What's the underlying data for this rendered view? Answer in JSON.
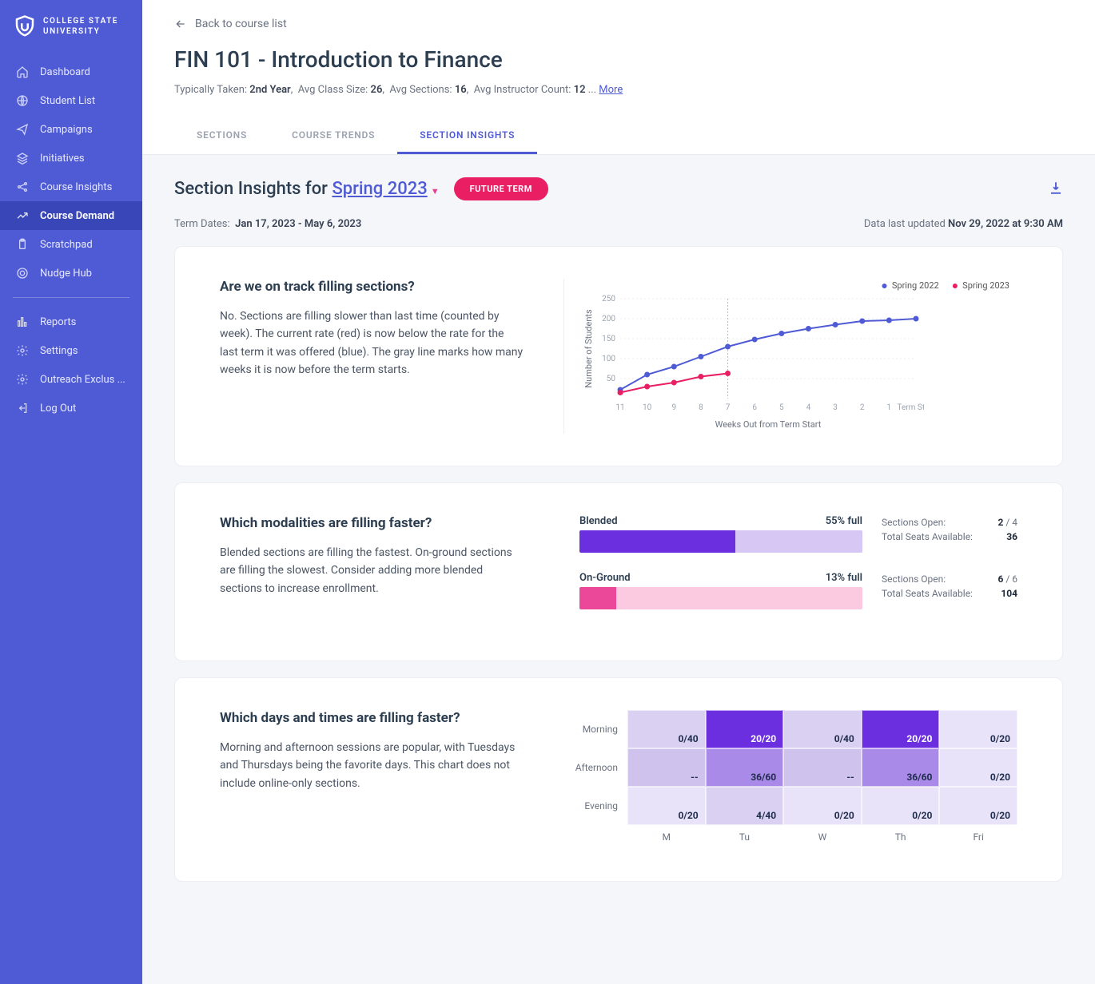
{
  "brand": {
    "line1": "COLLEGE STATE",
    "line2": "UNIVERSITY"
  },
  "sidebar": {
    "items": [
      {
        "label": "Dashboard",
        "icon": "home"
      },
      {
        "label": "Student List",
        "icon": "globe"
      },
      {
        "label": "Campaigns",
        "icon": "send"
      },
      {
        "label": "Initiatives",
        "icon": "layers"
      },
      {
        "label": "Course Insights",
        "icon": "share"
      },
      {
        "label": "Course Demand",
        "icon": "trend"
      },
      {
        "label": "Scratchpad",
        "icon": "clipboard"
      },
      {
        "label": "Nudge Hub",
        "icon": "target"
      }
    ],
    "secondary": [
      {
        "label": "Reports",
        "icon": "bar"
      },
      {
        "label": "Settings",
        "icon": "gear"
      },
      {
        "label": "Outreach Exclus ...",
        "icon": "gear"
      },
      {
        "label": "Log Out",
        "icon": "logout"
      }
    ],
    "active_index": 5
  },
  "header": {
    "back": "Back to course list",
    "title": "FIN 101 - Introduction to Finance",
    "meta": {
      "typically_taken_label": "Typically Taken:",
      "typically_taken": "2nd Year",
      "class_size_label": "Avg Class Size:",
      "class_size": "26",
      "sections_label": "Avg Sections:",
      "sections": "16",
      "instructors_label": "Avg Instructor Count:",
      "instructors": "12",
      "ellipsis": "...",
      "more": "More"
    },
    "tabs": [
      "SECTIONS",
      "COURSE TRENDS",
      "SECTION INSIGHTS"
    ],
    "active_tab": 2
  },
  "insights": {
    "title_prefix": "Section Insights for ",
    "term": "Spring 2023",
    "badge": "FUTURE TERM",
    "term_dates_label": "Term Dates:",
    "term_dates": "Jan 17, 2023 -  May 6, 2023",
    "updated_label": "Data last updated",
    "updated": "Nov 29, 2022 at 9:30 AM"
  },
  "card1": {
    "title": "Are we on track filling sections?",
    "body": "No. Sections are filling slower than last time (counted by week). The current rate (red) is now below the rate for the last term it was offered (blue). The gray line marks how many weeks it is now before the term starts.",
    "chart": {
      "type": "line",
      "xlabel": "Weeks Out from Term Start",
      "ylabel": "Number of Students",
      "x_ticks": [
        "11",
        "10",
        "9",
        "8",
        "7",
        "6",
        "5",
        "4",
        "3",
        "2",
        "1",
        "Term Start"
      ],
      "y_ticks": [
        50,
        100,
        150,
        200,
        250
      ],
      "ylim": [
        0,
        250
      ],
      "series": [
        {
          "name": "Spring 2022",
          "color": "#4f5bd5",
          "values": [
            22,
            60,
            80,
            105,
            130,
            148,
            163,
            175,
            185,
            194,
            196,
            200
          ]
        },
        {
          "name": "Spring 2023",
          "color": "#e91e63",
          "values": [
            15,
            30,
            40,
            55,
            63
          ]
        }
      ],
      "now_marker_x_index": 4,
      "grid_color": "#eceef3",
      "marker_radius": 3.5,
      "line_width": 2,
      "label_fontsize": 10,
      "background_color": "#ffffff"
    }
  },
  "card2": {
    "title": "Which modalities are filling faster?",
    "body": "Blended sections are filling the fastest. On-ground sections are filling the slowest. Consider adding more blended sections to increase enrollment.",
    "modalities": [
      {
        "name": "Blended",
        "pct_label": "55% full",
        "pct": 55,
        "fill_color": "#6b2fe0",
        "track_color": "#d6c7f5",
        "sections_open_label": "Sections Open:",
        "sections_open": "2",
        "sections_total": "4",
        "seats_label": "Total Seats Available:",
        "seats": "36"
      },
      {
        "name": "On-Ground",
        "pct_label": "13% full",
        "pct": 13,
        "fill_color": "#ec4899",
        "track_color": "#fbc9e0",
        "sections_open_label": "Sections Open:",
        "sections_open": "6",
        "sections_total": "6",
        "seats_label": "Total Seats Available:",
        "seats": "104"
      }
    ]
  },
  "card3": {
    "title": "Which days and times are filling faster?",
    "body": "Morning and afternoon sessions are popular, with Tuesdays and Thursdays being the favorite days. This chart does not include online-only sections.",
    "heatmap": {
      "type": "heatmap",
      "row_labels": [
        "Morning",
        "Afternoon",
        "Evening"
      ],
      "col_labels": [
        "M",
        "Tu",
        "W",
        "Th",
        "Fri"
      ],
      "text_color": "#1f2c4c",
      "cells": [
        [
          {
            "t": "0/40",
            "c": "#d9d0f2"
          },
          {
            "t": "20/20",
            "c": "#6b2fe0",
            "tc": "#fff"
          },
          {
            "t": "0/40",
            "c": "#d9d0f2"
          },
          {
            "t": "20/20",
            "c": "#6b2fe0",
            "tc": "#fff"
          },
          {
            "t": "0/20",
            "c": "#e8e3f8"
          }
        ],
        [
          {
            "t": "--",
            "c": "#cfc3ee"
          },
          {
            "t": "36/60",
            "c": "#a98ae8"
          },
          {
            "t": "--",
            "c": "#cfc3ee"
          },
          {
            "t": "36/60",
            "c": "#a98ae8"
          },
          {
            "t": "0/20",
            "c": "#e8e3f8"
          }
        ],
        [
          {
            "t": "0/20",
            "c": "#e8e3f8"
          },
          {
            "t": "4/40",
            "c": "#d9d0f2"
          },
          {
            "t": "0/20",
            "c": "#e8e3f8"
          },
          {
            "t": "0/20",
            "c": "#e8e3f8"
          },
          {
            "t": "0/20",
            "c": "#e8e3f8"
          }
        ]
      ]
    }
  }
}
